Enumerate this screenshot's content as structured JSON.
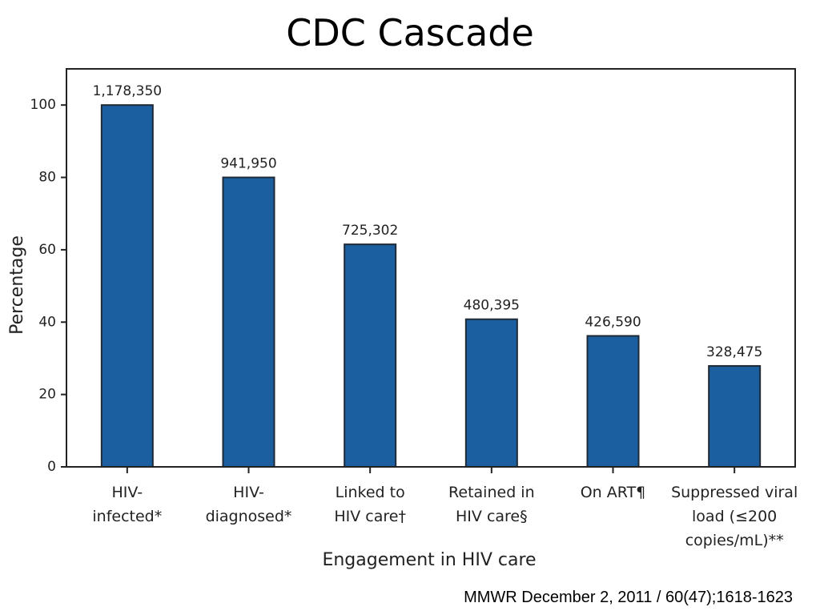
{
  "slide": {
    "title": "CDC Cascade",
    "citation": "MMWR December 2, 2011 / 60(47);1618-1623"
  },
  "chart_data": {
    "type": "bar",
    "title": "",
    "xlabel": "Engagement in HIV care",
    "ylabel": "Percentage",
    "ylim": [
      0,
      110
    ],
    "yticks": [
      0,
      20,
      40,
      60,
      80,
      100
    ],
    "grid": false,
    "bar_color": "#1b5fa0",
    "categories": [
      [
        "HIV-",
        "infected*"
      ],
      [
        "HIV-",
        "diagnosed*"
      ],
      [
        "Linked to",
        "HIV care†"
      ],
      [
        "Retained in",
        "HIV care§"
      ],
      [
        "On ART¶"
      ],
      [
        "Suppressed viral",
        "load (≤200",
        "copies/mL)**"
      ]
    ],
    "values": [
      100,
      80,
      61.5,
      40.8,
      36.2,
      27.9
    ],
    "data_labels": [
      "1,178,350",
      "941,950",
      "725,302",
      "480,395",
      "426,590",
      "328,475"
    ]
  }
}
